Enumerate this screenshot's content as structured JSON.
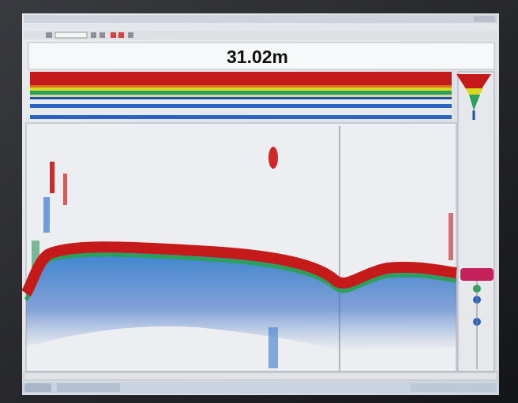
{
  "depth_display": {
    "value": "31.02m"
  }
}
